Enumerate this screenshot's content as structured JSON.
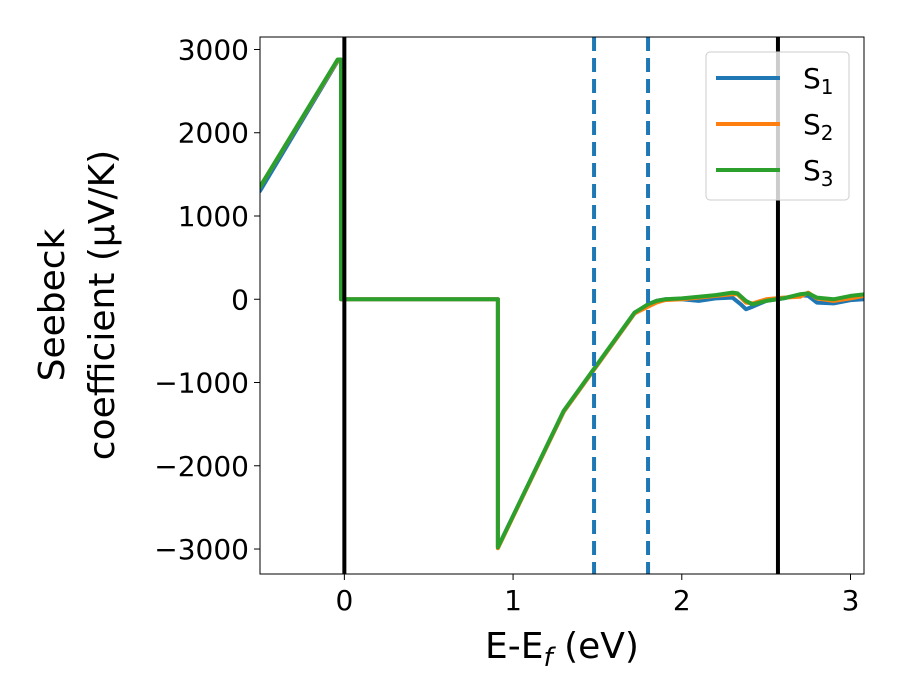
{
  "chart_data": {
    "type": "line",
    "xlabel": "E-E_f (eV)",
    "ylabel_line1": "Seebeck",
    "ylabel_line2": "coefficient  (μV/K)",
    "xlim": [
      -0.5,
      3.08
    ],
    "ylim": [
      -3300,
      3150
    ],
    "xticks": [
      0,
      1,
      2,
      3
    ],
    "yticks": [
      3000,
      2000,
      1000,
      0,
      -1000,
      -2000,
      -3000
    ],
    "xtick_labels": [
      "0",
      "1",
      "2",
      "3"
    ],
    "ytick_labels": [
      "3000",
      "2000",
      "1000",
      "0",
      "−1000",
      "−2000",
      "−3000"
    ],
    "legend_position": "top-right",
    "vertical_lines": [
      {
        "x": 0.0,
        "style": "solid",
        "color": "#000000"
      },
      {
        "x": 2.57,
        "style": "solid",
        "color": "#000000"
      },
      {
        "x": 1.48,
        "style": "dashed",
        "color": "#1f77b4"
      },
      {
        "x": 1.8,
        "style": "dashed",
        "color": "#1f77b4"
      }
    ],
    "series": [
      {
        "name": "S1",
        "base": "S",
        "sub": "1",
        "color": "#1f77b4",
        "x": [
          -0.5,
          -0.04,
          -0.02,
          -0.02,
          0.0,
          0.9,
          0.91,
          0.91,
          1.3,
          1.72,
          1.8,
          1.85,
          1.9,
          2.0,
          2.1,
          2.2,
          2.3,
          2.35,
          2.38,
          2.42,
          2.5,
          2.6,
          2.7,
          2.75,
          2.8,
          2.9,
          3.0,
          3.08
        ],
        "values": [
          1300,
          2860,
          2860,
          0,
          0,
          0,
          0,
          -2980,
          -1350,
          -170,
          -60,
          -20,
          0,
          0,
          -20,
          10,
          20,
          -60,
          -120,
          -90,
          -20,
          10,
          50,
          40,
          -40,
          -50,
          -10,
          0
        ]
      },
      {
        "name": "S2",
        "base": "S",
        "sub": "2",
        "color": "#ff7f0e",
        "x": [
          -0.5,
          -0.04,
          -0.02,
          -0.02,
          0.0,
          0.9,
          0.91,
          0.91,
          1.3,
          1.72,
          1.8,
          1.85,
          1.9,
          2.0,
          2.1,
          2.2,
          2.3,
          2.33,
          2.38,
          2.42,
          2.5,
          2.6,
          2.7,
          2.75,
          2.8,
          2.9,
          3.0,
          3.08
        ],
        "values": [
          1350,
          2870,
          2870,
          0,
          0,
          0,
          0,
          -2990,
          -1350,
          -170,
          -90,
          -40,
          -10,
          0,
          20,
          40,
          60,
          60,
          -40,
          -50,
          0,
          20,
          30,
          80,
          10,
          -20,
          10,
          40
        ]
      },
      {
        "name": "S3",
        "base": "S",
        "sub": "3",
        "color": "#2ca02c",
        "x": [
          -0.5,
          -0.04,
          -0.02,
          -0.02,
          0.0,
          0.9,
          0.91,
          0.91,
          1.3,
          1.72,
          1.8,
          1.85,
          1.9,
          2.0,
          2.1,
          2.2,
          2.3,
          2.33,
          2.38,
          2.42,
          2.5,
          2.6,
          2.7,
          2.75,
          2.8,
          2.9,
          3.0,
          3.08
        ],
        "values": [
          1350,
          2880,
          2880,
          0,
          0,
          0,
          0,
          -2980,
          -1340,
          -160,
          -60,
          -20,
          0,
          10,
          30,
          50,
          80,
          70,
          -20,
          -60,
          -20,
          10,
          60,
          70,
          20,
          0,
          40,
          60
        ]
      }
    ]
  }
}
